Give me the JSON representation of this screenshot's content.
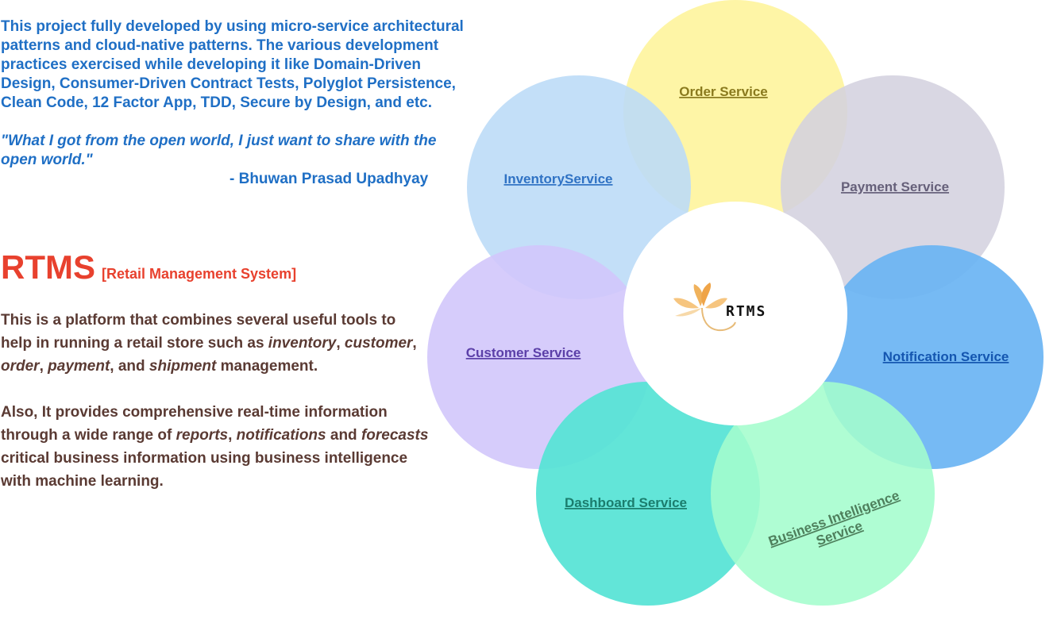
{
  "intro": {
    "paragraph": "This project fully developed by using micro-service architectural patterns and cloud-native patterns. The various development practices exercised while developing it like Domain-Driven Design, Consumer-Driven Contract Tests, Polyglot Persistence, Clean Code, 12 Factor App, TDD, Secure by Design, and etc.",
    "quote": "\"What I got from the open world, I just want to share with the open world.\"",
    "author": "- Bhuwan Prasad Upadhyay"
  },
  "product": {
    "name": "RTMS",
    "subtitle": "[Retail Management System]",
    "desc1": {
      "s1": "This is a platform that combines several useful tools to help in running a retail store such as ",
      "i1": "inventory",
      "s2": ", ",
      "i2": "customer",
      "s3": ", ",
      "i3": "order",
      "s4": ", ",
      "i4": "payment",
      "s5": ", and ",
      "i5": "shipment",
      "s6": " management."
    },
    "desc2": {
      "s1": "Also, It provides comprehensive real-time information through a wide range of ",
      "i1": "reports",
      "s2": ", ",
      "i2": "notifications",
      "s3": " and ",
      "i3": "forecasts",
      "s4": " critical business information using business intelligence with machine learning."
    }
  },
  "diagram": {
    "center_label": "RTMS",
    "services": {
      "order": {
        "label": "Order Service",
        "fill": "#fef49c",
        "text": "#8a7a1e"
      },
      "inventory": {
        "label": "InventoryService",
        "fill": "#bcdcf7",
        "text": "#2f72c4"
      },
      "payment": {
        "label": "Payment Service",
        "fill": "#d4d1df",
        "text": "#66607a"
      },
      "customer": {
        "label": "Customer Service",
        "fill": "#d2c7fb",
        "text": "#5b3fa8"
      },
      "notification": {
        "label": "Notification Service",
        "fill": "#6ab4f3",
        "text": "#1456b0"
      },
      "dashboard": {
        "label": "Dashboard Service",
        "fill": "#56e3d5",
        "text": "#1b7d6d"
      },
      "bi": {
        "label_line1": "Business Intelligence",
        "label_line2": "Service",
        "fill": "#a4fdcd",
        "text": "#4e7f5c"
      }
    }
  }
}
